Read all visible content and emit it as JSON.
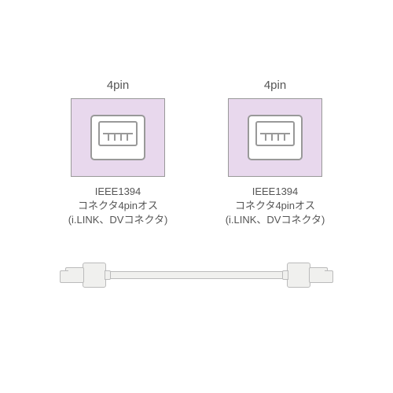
{
  "connectors": {
    "left": {
      "pin_label": "4pin",
      "box_bg": "#e8d8ed",
      "desc_line1": "IEEE1394",
      "desc_line2": "コネクタ4pinオス",
      "desc_line3": "(i.LINK、DVコネクタ)"
    },
    "right": {
      "pin_label": "4pin",
      "box_bg": "#e8d8ed",
      "desc_line1": "IEEE1394",
      "desc_line2": "コネクタ4pinオス",
      "desc_line3": "(i.LINK、DVコネクタ)"
    }
  },
  "cable": {
    "wire_color": "#f0f0ee",
    "border_color": "#bbbbbb"
  },
  "styling": {
    "background": "#ffffff",
    "text_color": "#555555",
    "pin_label_fontsize": 15,
    "desc_fontsize": 13,
    "connector_border": "#999999"
  }
}
